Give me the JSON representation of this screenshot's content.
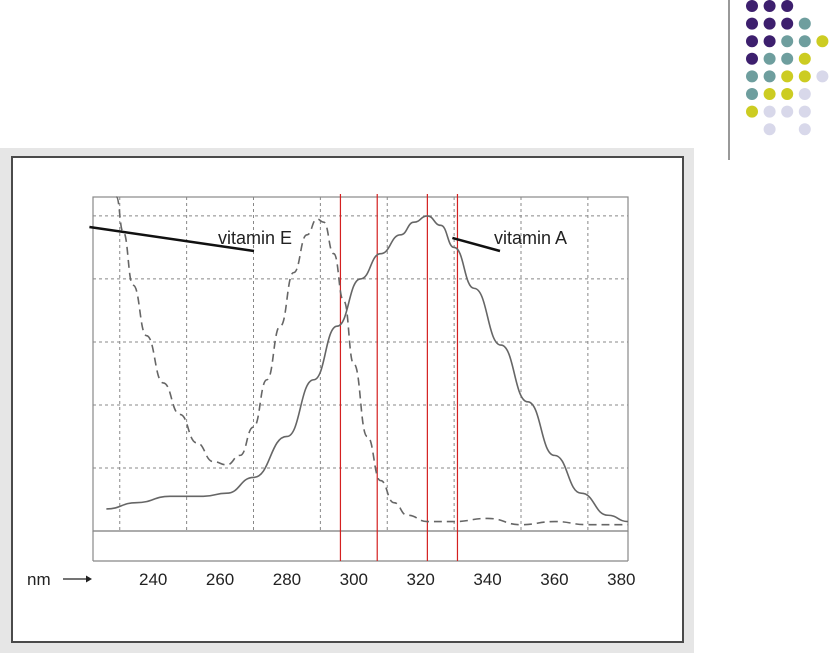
{
  "colors": {
    "dot_purple": "#3d1f6e",
    "dot_teal": "#6e9e9e",
    "dot_yellow": "#cccc22",
    "dot_lavender": "#d8d8ea",
    "marker_line": "#d42020",
    "curve": "#666666",
    "grid": "#888888"
  },
  "decoration": {
    "rows": [
      [
        "purple",
        "purple",
        "purple",
        null,
        null
      ],
      [
        "purple",
        "purple",
        "purple",
        "teal",
        null
      ],
      [
        "purple",
        "purple",
        "teal",
        "teal",
        "yellow"
      ],
      [
        "purple",
        "teal",
        "teal",
        "yellow",
        null
      ],
      [
        "teal",
        "teal",
        "yellow",
        "yellow",
        "lavender"
      ],
      [
        "teal",
        "yellow",
        "yellow",
        "lavender",
        null
      ],
      [
        "yellow",
        "lavender",
        "lavender",
        "lavender",
        null
      ],
      [
        null,
        "lavender",
        null,
        "lavender",
        null
      ]
    ]
  },
  "chart_data": {
    "type": "line",
    "x_unit_label": "nm",
    "x_ticks": [
      240,
      260,
      280,
      300,
      320,
      340,
      360,
      380
    ],
    "xlim": [
      222,
      382
    ],
    "ylim": [
      0,
      1.06
    ],
    "grid": true,
    "marker_lines_x": [
      296,
      307,
      322,
      331
    ],
    "annotations": [
      {
        "text": "vitamin E",
        "series": "vitamin E"
      },
      {
        "text": "vitamin A",
        "series": "vitamin A"
      }
    ],
    "series": [
      {
        "name": "vitamin E",
        "style": "dashed",
        "x": [
          229,
          231,
          234,
          238,
          243,
          248,
          253,
          258,
          262,
          266,
          270,
          274,
          278,
          282,
          286,
          289,
          291,
          294,
          297,
          300,
          304,
          308,
          312,
          316,
          322,
          330,
          340,
          350,
          360,
          370,
          382
        ],
        "y": [
          1.06,
          0.95,
          0.78,
          0.62,
          0.47,
          0.37,
          0.28,
          0.22,
          0.21,
          0.24,
          0.33,
          0.48,
          0.65,
          0.82,
          0.94,
          0.99,
          0.98,
          0.88,
          0.73,
          0.53,
          0.3,
          0.16,
          0.09,
          0.05,
          0.03,
          0.03,
          0.04,
          0.02,
          0.03,
          0.02,
          0.02
        ]
      },
      {
        "name": "vitamin A",
        "style": "solid",
        "x": [
          226,
          235,
          245,
          255,
          262,
          270,
          280,
          288,
          295,
          302,
          308,
          314,
          318,
          322,
          326,
          330,
          336,
          344,
          352,
          360,
          368,
          376,
          382
        ],
        "y": [
          0.07,
          0.09,
          0.11,
          0.11,
          0.12,
          0.17,
          0.3,
          0.48,
          0.65,
          0.8,
          0.88,
          0.94,
          0.98,
          1.0,
          0.97,
          0.9,
          0.77,
          0.59,
          0.41,
          0.24,
          0.12,
          0.05,
          0.03
        ]
      }
    ]
  }
}
